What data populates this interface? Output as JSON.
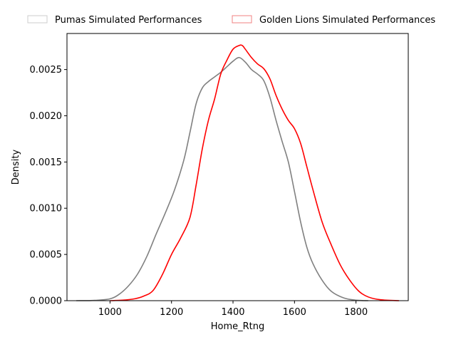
{
  "chart_data": {
    "type": "line",
    "kind": "kde",
    "xlabel": "Home_Rtng",
    "ylabel": "Density",
    "xlim": [
      860,
      1970
    ],
    "ylim": [
      0,
      0.00289
    ],
    "xticks": [
      1000,
      1200,
      1400,
      1600,
      1800
    ],
    "xtick_labels": [
      "1000",
      "1200",
      "1400",
      "1600",
      "1800"
    ],
    "yticks": [
      0,
      0.0005,
      0.001,
      0.0015,
      0.002,
      0.0025
    ],
    "ytick_labels": [
      "0.0000",
      "0.0005",
      "0.0010",
      "0.0015",
      "0.0020",
      "0.0025"
    ],
    "grid": false,
    "legend_position": "top-center, above plot",
    "series": [
      {
        "name": "Pumas Simulated Performances",
        "color": "#808080",
        "legend_edge_color": "#cccccc",
        "x": [
          890,
          950,
          1000,
          1030,
          1060,
          1090,
          1120,
          1150,
          1180,
          1210,
          1240,
          1260,
          1280,
          1300,
          1320,
          1340,
          1360,
          1380,
          1400,
          1420,
          1440,
          1460,
          1480,
          1500,
          1520,
          1540,
          1560,
          1580,
          1600,
          1620,
          1640,
          1660,
          1690,
          1720,
          1760,
          1800,
          1840
        ],
        "y": [
          0,
          3e-06,
          2e-05,
          7e-05,
          0.00016,
          0.00029,
          0.00048,
          0.00072,
          0.00095,
          0.0012,
          0.00152,
          0.00182,
          0.00213,
          0.0023,
          0.00237,
          0.00242,
          0.00247,
          0.00253,
          0.00259,
          0.00263,
          0.00258,
          0.0025,
          0.00245,
          0.00238,
          0.0022,
          0.00195,
          0.00172,
          0.0015,
          0.00118,
          0.00085,
          0.00058,
          0.0004,
          0.00022,
          0.0001,
          3e-05,
          5e-06,
          0
        ]
      },
      {
        "name": "Golden Lions Simulated Performances",
        "color": "#ff0000",
        "legend_edge_color": "#f08080",
        "x": [
          1000,
          1040,
          1080,
          1110,
          1140,
          1170,
          1200,
          1230,
          1260,
          1280,
          1300,
          1320,
          1340,
          1360,
          1380,
          1400,
          1420,
          1430,
          1440,
          1460,
          1480,
          1500,
          1520,
          1540,
          1560,
          1580,
          1600,
          1620,
          1640,
          1660,
          1690,
          1720,
          1750,
          1780,
          1810,
          1840,
          1880,
          1940
        ],
        "y": [
          0,
          5e-06,
          2e-05,
          5e-05,
          0.00011,
          0.00028,
          0.0005,
          0.00068,
          0.0009,
          0.00125,
          0.00164,
          0.00195,
          0.00218,
          0.00245,
          0.0026,
          0.00272,
          0.00276,
          0.00276,
          0.00272,
          0.00263,
          0.00256,
          0.00251,
          0.0024,
          0.00222,
          0.00207,
          0.00195,
          0.00186,
          0.0017,
          0.00145,
          0.0012,
          0.00085,
          0.0006,
          0.00038,
          0.00022,
          0.0001,
          4e-05,
          1e-05,
          0
        ]
      }
    ]
  }
}
